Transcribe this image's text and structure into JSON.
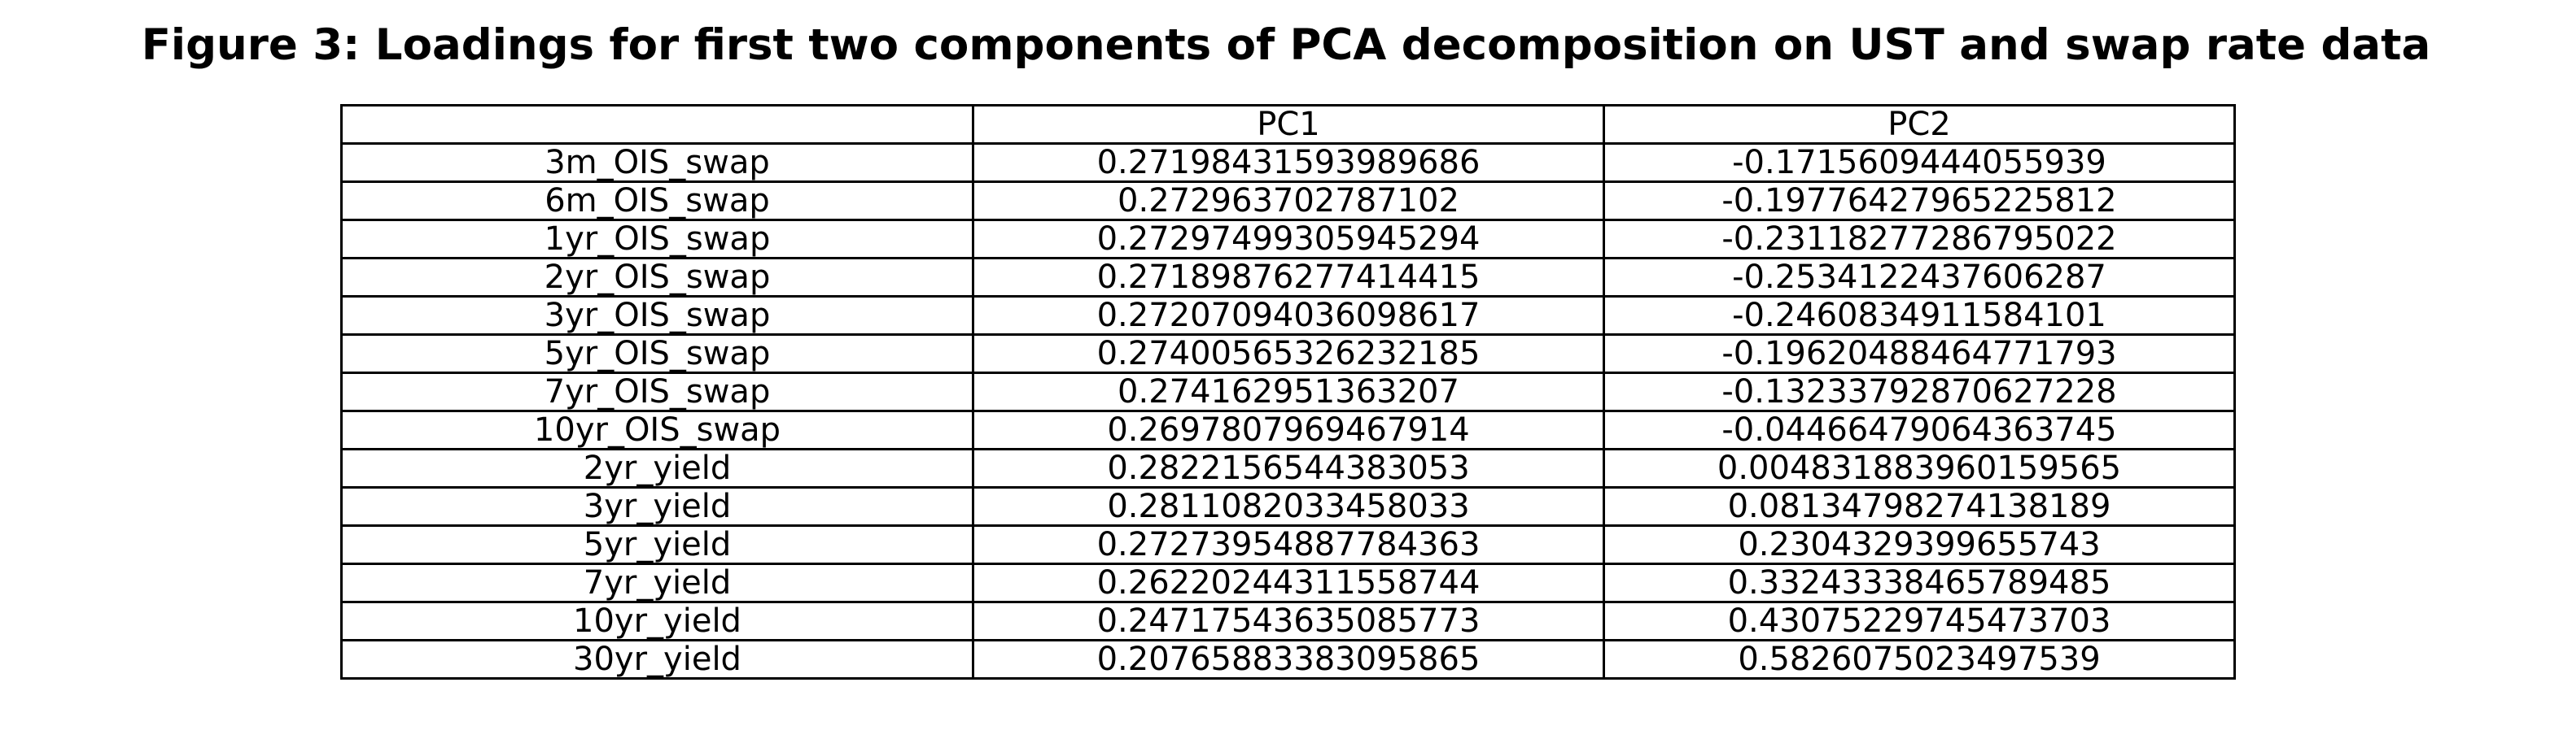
{
  "chart_data": {
    "type": "table",
    "title": "Figure 3: Loadings for first two components of PCA decomposition on UST and swap rate data",
    "columns": [
      "",
      "PC1",
      "PC2"
    ],
    "rows": [
      {
        "label": "3m_OIS_swap",
        "pc1": "0.27198431593989686",
        "pc2": "-0.1715609444055939"
      },
      {
        "label": "6m_OIS_swap",
        "pc1": "0.272963702787102",
        "pc2": "-0.19776427965225812"
      },
      {
        "label": "1yr_OIS_swap",
        "pc1": "0.27297499305945294",
        "pc2": "-0.23118277286795022"
      },
      {
        "label": "2yr_OIS_swap",
        "pc1": "0.27189876277414415",
        "pc2": "-0.2534122437606287"
      },
      {
        "label": "3yr_OIS_swap",
        "pc1": "0.27207094036098617",
        "pc2": "-0.2460834911584101"
      },
      {
        "label": "5yr_OIS_swap",
        "pc1": "0.27400565326232185",
        "pc2": "-0.19620488464771793"
      },
      {
        "label": "7yr_OIS_swap",
        "pc1": "0.274162951363207",
        "pc2": "-0.13233792870627228"
      },
      {
        "label": "10yr_OIS_swap",
        "pc1": "0.2697807969467914",
        "pc2": "-0.04466479064363745"
      },
      {
        "label": "2yr_yield",
        "pc1": "0.2822156544383053",
        "pc2": "0.004831883960159565"
      },
      {
        "label": "3yr_yield",
        "pc1": "0.2811082033458033",
        "pc2": "0.08134798274138189"
      },
      {
        "label": "5yr_yield",
        "pc1": "0.27273954887784363",
        "pc2": "0.2304329399655743"
      },
      {
        "label": "7yr_yield",
        "pc1": "0.26220244311558744",
        "pc2": "0.33243338465789485"
      },
      {
        "label": "10yr_yield",
        "pc1": "0.24717543635085773",
        "pc2": "0.43075229745473703"
      },
      {
        "label": "30yr_yield",
        "pc1": "0.20765883383095865",
        "pc2": "0.5826075023497539"
      }
    ]
  }
}
